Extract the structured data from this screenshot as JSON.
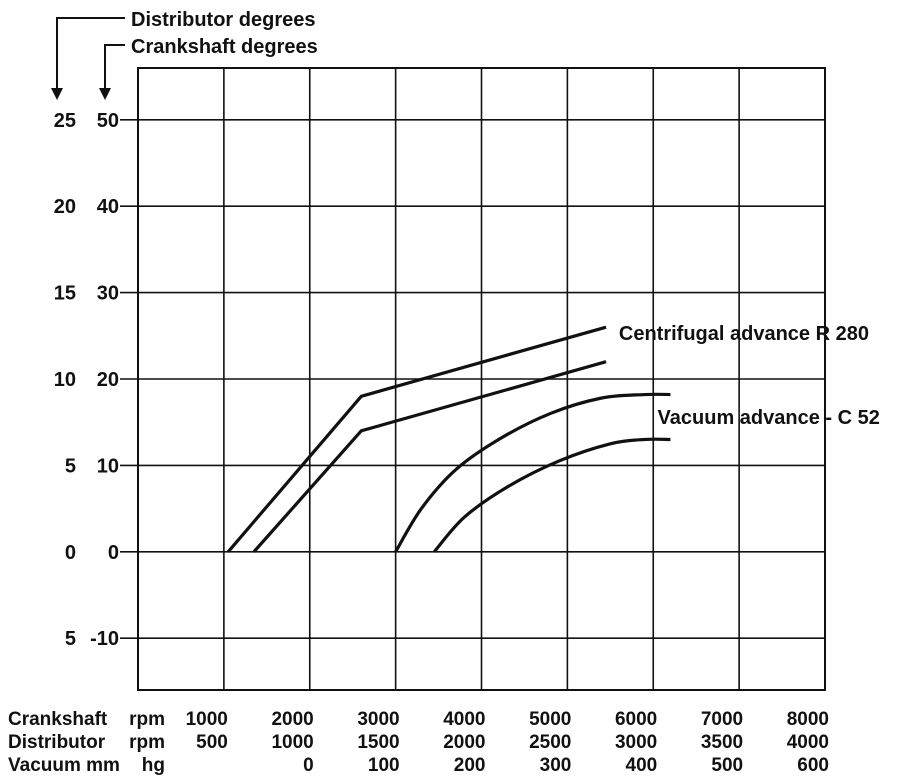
{
  "chart_data": {
    "type": "line",
    "axis_titles": {
      "y_outer": "Distributor degrees",
      "y_inner": "Crankshaft degrees"
    },
    "y_outer_ticks": [
      "25",
      "20",
      "15",
      "10",
      "5",
      "0",
      "5"
    ],
    "y_inner_ticks": [
      "50",
      "40",
      "30",
      "20",
      "10",
      "0",
      "-10"
    ],
    "y_tick_values": [
      50,
      40,
      30,
      20,
      10,
      0,
      -10
    ],
    "ylim": [
      -16,
      56
    ],
    "xlim": [
      0,
      8000
    ],
    "x_tick_values": [
      1000,
      2000,
      3000,
      4000,
      5000,
      6000,
      7000,
      8000
    ],
    "x_rows": [
      {
        "label_left": "Crankshaft",
        "label_right": "rpm",
        "ticks": [
          "1000",
          "2000",
          "3000",
          "4000",
          "5000",
          "6000",
          "7000",
          "8000"
        ]
      },
      {
        "label_left": "Distributor",
        "label_right": "rpm",
        "ticks": [
          "500",
          "1000",
          "1500",
          "2000",
          "2500",
          "3000",
          "3500",
          "4000"
        ]
      },
      {
        "label_left": "Vacuum mm",
        "label_right": "hg",
        "ticks": [
          "",
          "0",
          "100",
          "200",
          "300",
          "400",
          "500",
          "600"
        ]
      }
    ],
    "series": [
      {
        "name": "Centrifugal advance R 280",
        "points": [
          [
            1050,
            0
          ],
          [
            2600,
            18
          ],
          [
            5450,
            26
          ]
        ]
      },
      {
        "name": "Centrifugal advance R 280",
        "points": [
          [
            1350,
            0
          ],
          [
            2600,
            14
          ],
          [
            5450,
            22
          ]
        ]
      },
      {
        "name": "Vacuum advance - C 52",
        "points": [
          [
            3000,
            0
          ],
          [
            3300,
            5
          ],
          [
            3700,
            9.5
          ],
          [
            4200,
            13
          ],
          [
            4800,
            16
          ],
          [
            5400,
            17.8
          ],
          [
            5900,
            18.2
          ],
          [
            6200,
            18.2
          ]
        ]
      },
      {
        "name": "Vacuum advance - C 52",
        "points": [
          [
            3450,
            0
          ],
          [
            3800,
            4
          ],
          [
            4300,
            7.5
          ],
          [
            4900,
            10.5
          ],
          [
            5500,
            12.5
          ],
          [
            5900,
            13
          ],
          [
            6200,
            13
          ]
        ]
      }
    ],
    "annotations": [
      {
        "text": "Centrifugal advance R 280",
        "x": 5600,
        "y": 24.5
      },
      {
        "text": "Vacuum advance - C 52",
        "x": 6050,
        "y": 14.8
      }
    ],
    "grid": true,
    "legend": "none"
  }
}
